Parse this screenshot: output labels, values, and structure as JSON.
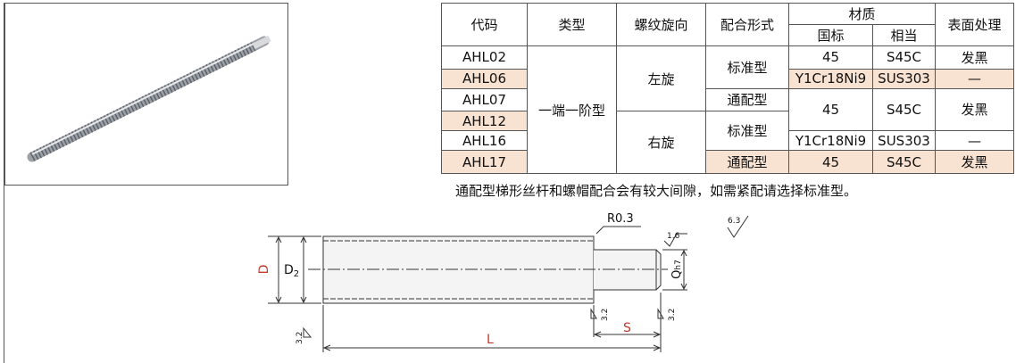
{
  "table": {
    "header": [
      "代码",
      "类型",
      "螺纹旋向",
      "配合形式",
      "材质",
      "表面处理"
    ],
    "subheader": [
      "国标",
      "相当"
    ],
    "rows": [
      [
        "AHL02",
        "一端一阶型",
        "左旋",
        "标准型",
        "45",
        "S45C",
        "发黑"
      ],
      [
        "AHL06",
        "Y1Cr18Ni9",
        "SUS303",
        "—"
      ],
      [
        "AHL07",
        "通配型",
        "45",
        "S45C",
        "发黑"
      ],
      [
        "AHL12",
        "右旋",
        "标准型"
      ],
      [
        "AHL16",
        "Y1Cr18Ni9",
        "SUS303",
        "—"
      ],
      [
        "AHL17",
        "通配型",
        "45",
        "S45C",
        "发黑"
      ]
    ]
  },
  "note": "通配型梯形丝杆和螺帽配合会有较大间隙，如需紧配请选择标准型。",
  "drawing": {
    "radius": "R0.3",
    "d": "D",
    "d2": "D",
    "d2_sub": "2",
    "q": "Q",
    "q_sub": "h7",
    "l": "L",
    "s": "S",
    "rough_step": "1.6",
    "rough_general": "6.3",
    "rough_shoulder": "3.2",
    "rough_end": "3.2",
    "rough_left": "3.2"
  }
}
